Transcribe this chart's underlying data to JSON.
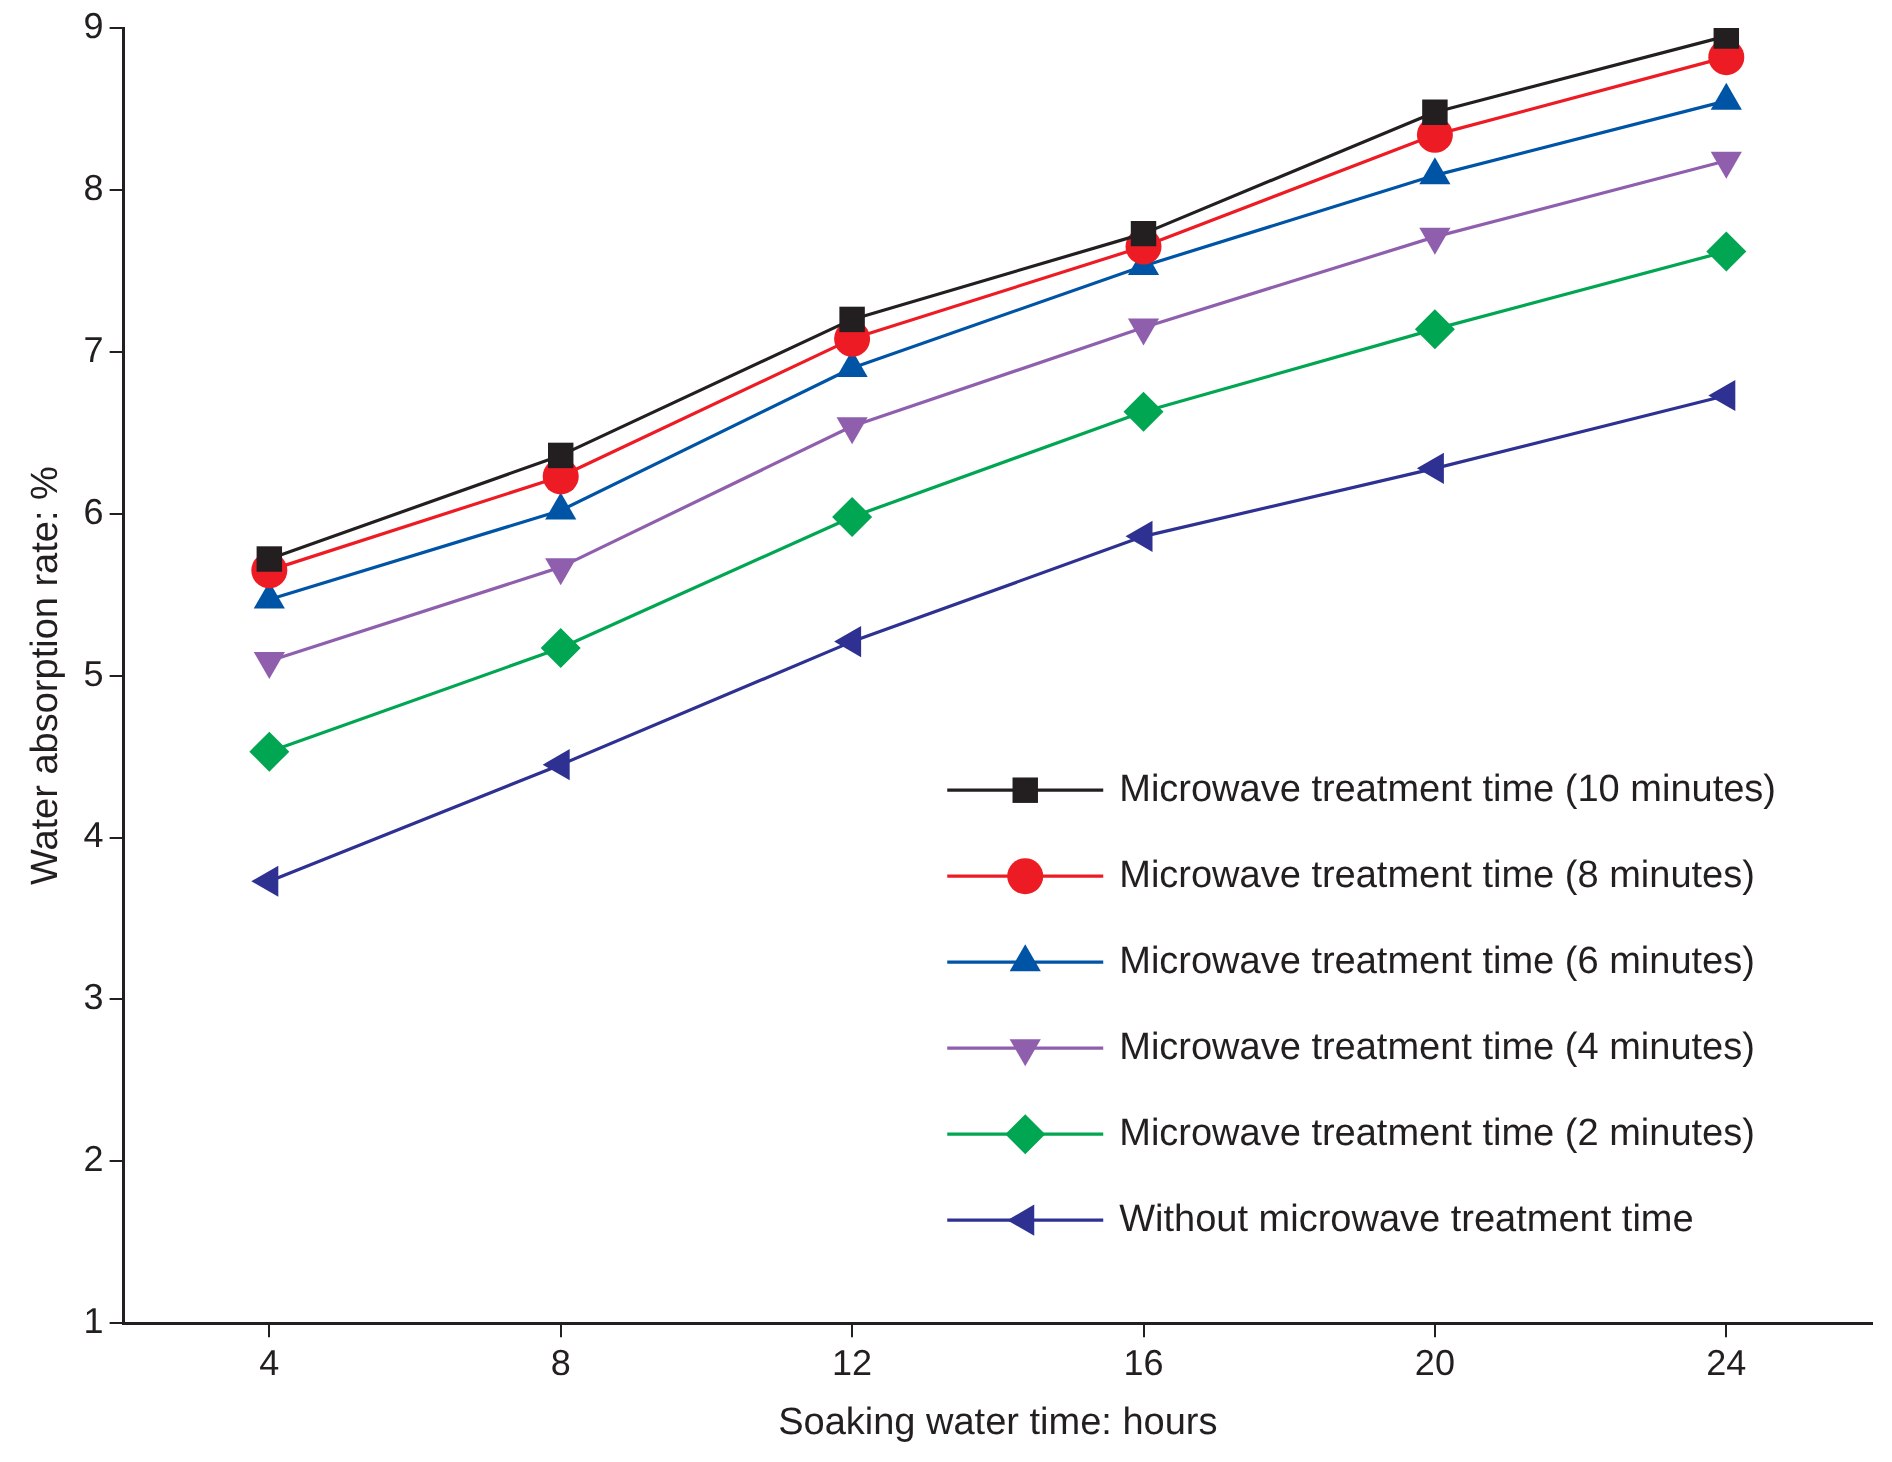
{
  "chart_data": {
    "type": "line",
    "xlabel": "Soaking water time: hours",
    "ylabel": "Water absorption rate: %",
    "x": [
      4,
      8,
      12,
      16,
      20,
      24
    ],
    "xlim": [
      2,
      26
    ],
    "xticks": [
      4,
      8,
      12,
      16,
      20,
      24
    ],
    "ylim": [
      1,
      9
    ],
    "yticks": [
      1,
      2,
      3,
      4,
      5,
      6,
      7,
      8,
      9
    ],
    "grid": false,
    "legend": "bottom right",
    "line_style": "solid",
    "series": [
      {
        "name": "Microwave treatment time (10 minutes)",
        "color": "#231f20",
        "marker": "square",
        "values": [
          5.72,
          6.36,
          7.2,
          7.73,
          8.48,
          8.95
        ]
      },
      {
        "name": "Microwave treatment time (8 minutes)",
        "color": "#ed1c24",
        "marker": "circle",
        "values": [
          5.65,
          6.23,
          7.08,
          7.65,
          8.34,
          8.82
        ]
      },
      {
        "name": "Microwave treatment time (6 minutes)",
        "color": "#0054a6",
        "marker": "triangle",
        "values": [
          5.47,
          6.02,
          6.9,
          7.53,
          8.09,
          8.55
        ]
      },
      {
        "name": "Microwave treatment time (4 minutes)",
        "color": "#8f5fad",
        "marker": "triangle",
        "values": [
          5.09,
          5.67,
          6.54,
          7.15,
          7.71,
          8.18
        ]
      },
      {
        "name": "Microwave treatment time (2 minutes)",
        "color": "#00a651",
        "marker": "diamond",
        "values": [
          4.53,
          5.17,
          5.98,
          6.63,
          7.14,
          7.62
        ]
      },
      {
        "name": "Without microwave treatment time",
        "color": "#2e3192",
        "marker": "triangle",
        "values": [
          3.73,
          4.45,
          5.21,
          5.86,
          6.28,
          6.73
        ]
      }
    ]
  }
}
